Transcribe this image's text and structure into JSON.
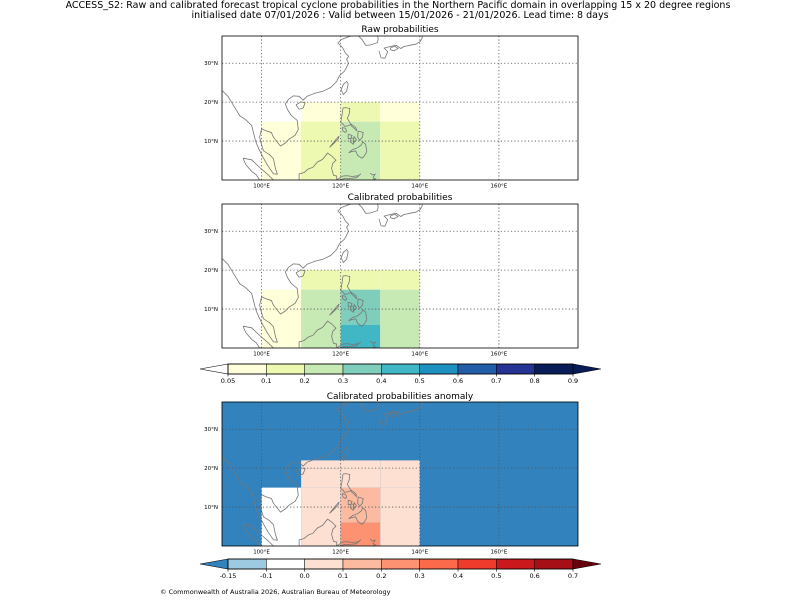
{
  "figure": {
    "title_line1": "ACCESS_S2: Raw and calibrated forecast tropical cyclone probabilities in the Northern Pacific domain in overlapping 15 x 20 degree regions",
    "title_line2": "initialised date 07/01/2026 :  Valid between 15/01/2026 - 21/01/2026. Lead time: 8 days",
    "credit": "© Commonwealth of Australia 2026, Australian Bureau of Meteorology"
  },
  "colors": {
    "probability": [
      "#ffffd9",
      "#edf8b1",
      "#c7e9b4",
      "#7fcdbb",
      "#41b6c4",
      "#1d91c0",
      "#225ea8",
      "#253494",
      "#081d58"
    ],
    "probability_under": "#ffffff",
    "probability_over": "#081d58",
    "anomaly": [
      "#9ecae1",
      "#ffffff",
      "#fee0d2",
      "#fcbba1",
      "#fc9272",
      "#fb6a4a",
      "#ef3b2c",
      "#cb181d",
      "#a50f15"
    ],
    "anomaly_under": "#3182bd",
    "anomaly_over": "#67000d",
    "coast": "#777777",
    "grid": "#555555"
  },
  "chart_data": [
    {
      "type": "heatmap",
      "title": "Raw probabilities",
      "x_range": [
        90,
        180
      ],
      "y_range": [
        0,
        37
      ],
      "x_ticks": [
        100,
        120,
        140,
        160
      ],
      "x_tick_labels": [
        "100°E",
        "120°E",
        "140°E",
        "160°E"
      ],
      "y_ticks": [
        10,
        20,
        30
      ],
      "y_tick_labels": [
        "10°N",
        "20°N",
        "30°N"
      ],
      "cells": [
        {
          "lon": [
            100,
            110
          ],
          "lat": [
            0,
            15
          ],
          "value": 0.07
        },
        {
          "lon": [
            110,
            120
          ],
          "lat": [
            0,
            15
          ],
          "value": 0.12
        },
        {
          "lon": [
            110,
            120
          ],
          "lat": [
            15,
            20
          ],
          "value": 0.07
        },
        {
          "lon": [
            120,
            130
          ],
          "lat": [
            0,
            15
          ],
          "value": 0.25
        },
        {
          "lon": [
            120,
            130
          ],
          "lat": [
            15,
            20
          ],
          "value": 0.15
        },
        {
          "lon": [
            130,
            140
          ],
          "lat": [
            0,
            15
          ],
          "value": 0.12
        },
        {
          "lon": [
            130,
            140
          ],
          "lat": [
            15,
            20
          ],
          "value": 0.07
        }
      ]
    },
    {
      "type": "heatmap",
      "title": "Calibrated probabilities",
      "x_range": [
        90,
        180
      ],
      "y_range": [
        0,
        37
      ],
      "x_ticks": [
        100,
        120,
        140,
        160
      ],
      "x_tick_labels": [
        "100°E",
        "120°E",
        "140°E",
        "160°E"
      ],
      "y_ticks": [
        10,
        20,
        30
      ],
      "y_tick_labels": [
        "10°N",
        "20°N",
        "30°N"
      ],
      "cells": [
        {
          "lon": [
            100,
            110
          ],
          "lat": [
            0,
            15
          ],
          "value": 0.07
        },
        {
          "lon": [
            110,
            120
          ],
          "lat": [
            0,
            15
          ],
          "value": 0.25
        },
        {
          "lon": [
            110,
            120
          ],
          "lat": [
            15,
            20
          ],
          "value": 0.15
        },
        {
          "lon": [
            120,
            130
          ],
          "lat": [
            0,
            6
          ],
          "value": 0.45
        },
        {
          "lon": [
            120,
            130
          ],
          "lat": [
            6,
            15
          ],
          "value": 0.35
        },
        {
          "lon": [
            120,
            130
          ],
          "lat": [
            15,
            20
          ],
          "value": 0.15
        },
        {
          "lon": [
            130,
            140
          ],
          "lat": [
            0,
            15
          ],
          "value": 0.25
        },
        {
          "lon": [
            130,
            140
          ],
          "lat": [
            15,
            20
          ],
          "value": 0.15
        }
      ]
    },
    {
      "type": "heatmap",
      "title": "Calibrated probabilities anomaly",
      "x_range": [
        90,
        180
      ],
      "y_range": [
        0,
        37
      ],
      "x_ticks": [
        100,
        120,
        140,
        160
      ],
      "x_tick_labels": [
        "100°E",
        "120°E",
        "140°E",
        "160°E"
      ],
      "y_ticks": [
        10,
        20,
        30
      ],
      "y_tick_labels": [
        "10°N",
        "20°N",
        "30°N"
      ],
      "background_value": -0.2,
      "cells": [
        {
          "lon": [
            100,
            110
          ],
          "lat": [
            0,
            15
          ],
          "value": -0.1
        },
        {
          "lon": [
            110,
            120
          ],
          "lat": [
            0,
            15
          ],
          "value": 0.05
        },
        {
          "lon": [
            110,
            120
          ],
          "lat": [
            15,
            20
          ],
          "value": 0.0
        },
        {
          "lon": [
            110,
            120
          ],
          "lat": [
            20,
            22
          ],
          "value": 0.0
        },
        {
          "lon": [
            120,
            130
          ],
          "lat": [
            0,
            6
          ],
          "value": 0.25
        },
        {
          "lon": [
            120,
            130
          ],
          "lat": [
            6,
            15
          ],
          "value": 0.15
        },
        {
          "lon": [
            120,
            130
          ],
          "lat": [
            15,
            22
          ],
          "value": 0.0
        },
        {
          "lon": [
            130,
            140
          ],
          "lat": [
            0,
            15
          ],
          "value": 0.05
        },
        {
          "lon": [
            130,
            140
          ],
          "lat": [
            15,
            22
          ],
          "value": 0.0
        }
      ]
    }
  ],
  "colorbars": {
    "probability": {
      "boundaries": [
        0.05,
        0.1,
        0.2,
        0.3,
        0.4,
        0.5,
        0.6,
        0.7,
        0.8,
        0.9
      ],
      "labels": [
        "0.05",
        "0.1",
        "0.2",
        "0.3",
        "0.4",
        "0.5",
        "0.6",
        "0.7",
        "0.8",
        "0.9"
      ]
    },
    "anomaly": {
      "boundaries": [
        -0.15,
        -0.1,
        0.0,
        0.1,
        0.2,
        0.3,
        0.4,
        0.5,
        0.6,
        0.7
      ],
      "labels": [
        "-0.15",
        "-0.1",
        "0.0",
        "0.1",
        "0.2",
        "0.3",
        "0.4",
        "0.5",
        "0.6",
        "0.7"
      ]
    }
  }
}
